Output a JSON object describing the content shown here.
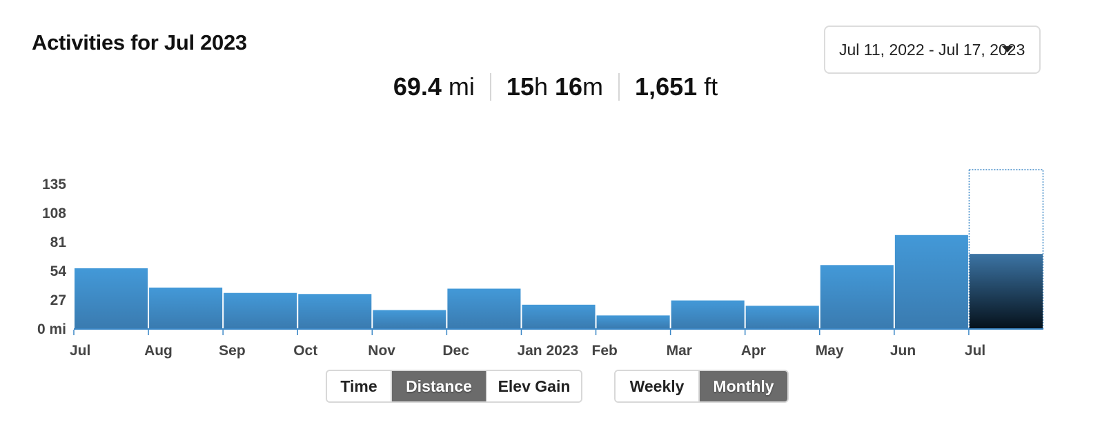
{
  "header": {
    "title": "Activities for Jul 2023",
    "date_range": "Jul 11, 2022 - Jul 17, 2023"
  },
  "stats": {
    "distance_value": "69.4",
    "distance_unit": " mi",
    "time_hours": "15",
    "time_h": "h ",
    "time_minutes": "16",
    "time_m": "m",
    "elev_value": "1,651",
    "elev_unit": " ft"
  },
  "metric_toggle": {
    "options": [
      "Time",
      "Distance",
      "Elev Gain"
    ],
    "selected": "Distance"
  },
  "period_toggle": {
    "options": [
      "Weekly",
      "Monthly"
    ],
    "selected": "Monthly"
  },
  "colors": {
    "bar_top": "#4399d8",
    "bar_bottom": "#3a7bb0",
    "selected_top": "#3c74a4",
    "selected_bottom": "#06121c",
    "axis": "#3b87c6"
  },
  "chart_data": {
    "type": "bar",
    "categories": [
      "Jul",
      "Aug",
      "Sep",
      "Oct",
      "Nov",
      "Dec",
      "Jan 2023",
      "Feb",
      "Mar",
      "Apr",
      "May",
      "Jun",
      "Jul"
    ],
    "values": [
      56,
      38,
      33,
      32,
      17,
      37,
      22,
      12,
      26,
      21,
      59,
      87,
      69.4
    ],
    "selected_index": 12,
    "yticks": [
      "0 mi",
      "27",
      "54",
      "81",
      "108",
      "135"
    ],
    "ylim": [
      0,
      148
    ],
    "grid": false
  }
}
